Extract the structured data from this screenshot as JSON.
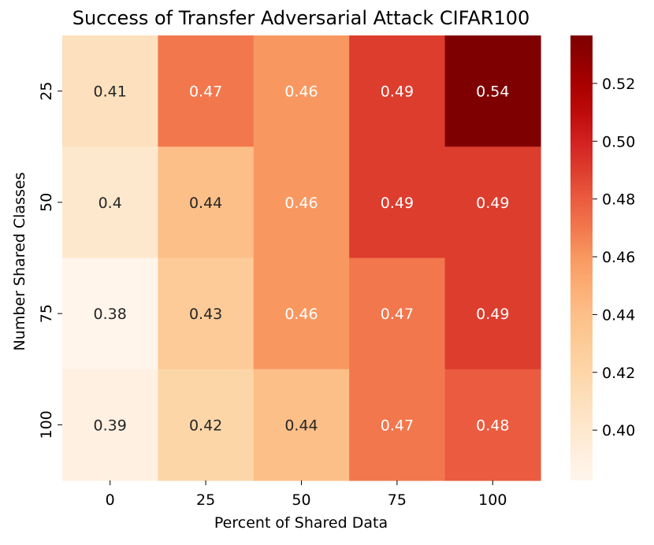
{
  "chart_data": {
    "type": "heatmap",
    "title": "Success of Transfer Adversarial Attack CIFAR100",
    "xlabel": "Percent of Shared Data",
    "ylabel": "Number Shared Classes",
    "x_categories": [
      "0",
      "25",
      "50",
      "75",
      "100"
    ],
    "y_categories": [
      "25",
      "50",
      "75",
      "100"
    ],
    "values": [
      [
        0.41,
        0.47,
        0.46,
        0.49,
        0.54
      ],
      [
        0.4,
        0.44,
        0.46,
        0.49,
        0.49
      ],
      [
        0.38,
        0.43,
        0.46,
        0.47,
        0.49
      ],
      [
        0.39,
        0.42,
        0.44,
        0.47,
        0.48
      ]
    ],
    "cell_labels": [
      [
        "0.41",
        "0.47",
        "0.46",
        "0.49",
        "0.54"
      ],
      [
        "0.4",
        "0.44",
        "0.46",
        "0.49",
        "0.49"
      ],
      [
        "0.38",
        "0.43",
        "0.46",
        "0.47",
        "0.49"
      ],
      [
        "0.39",
        "0.42",
        "0.44",
        "0.47",
        "0.48"
      ]
    ],
    "colorbar": {
      "colormap": "OrRd",
      "range": [
        0.3826,
        0.5366
      ],
      "ticks": [
        0.4,
        0.42,
        0.44,
        0.46,
        0.48,
        0.5,
        0.52
      ],
      "tick_labels": [
        "0.40",
        "0.42",
        "0.44",
        "0.46",
        "0.48",
        "0.50",
        "0.52"
      ]
    },
    "colormap_stops": [
      {
        "value": 0.3826,
        "color": "#fff5eb"
      },
      {
        "value": 0.39,
        "color": "#fff0e2"
      },
      {
        "value": 0.4,
        "color": "#fee8cd"
      },
      {
        "value": 0.41,
        "color": "#fde0bd"
      },
      {
        "value": 0.42,
        "color": "#fdd6a8"
      },
      {
        "value": 0.43,
        "color": "#fdcb97"
      },
      {
        "value": 0.44,
        "color": "#fdbf88"
      },
      {
        "value": 0.45,
        "color": "#fcad74"
      },
      {
        "value": 0.46,
        "color": "#f89860"
      },
      {
        "value": 0.47,
        "color": "#f2774d"
      },
      {
        "value": 0.48,
        "color": "#eb5b3f"
      },
      {
        "value": 0.49,
        "color": "#dd3d2d"
      },
      {
        "value": 0.5,
        "color": "#d32020"
      },
      {
        "value": 0.51,
        "color": "#be0a0a"
      },
      {
        "value": 0.52,
        "color": "#a80000"
      },
      {
        "value": 0.53,
        "color": "#8d0000"
      },
      {
        "value": 0.5366,
        "color": "#7f0000"
      }
    ],
    "text_color_threshold": 0.46
  }
}
